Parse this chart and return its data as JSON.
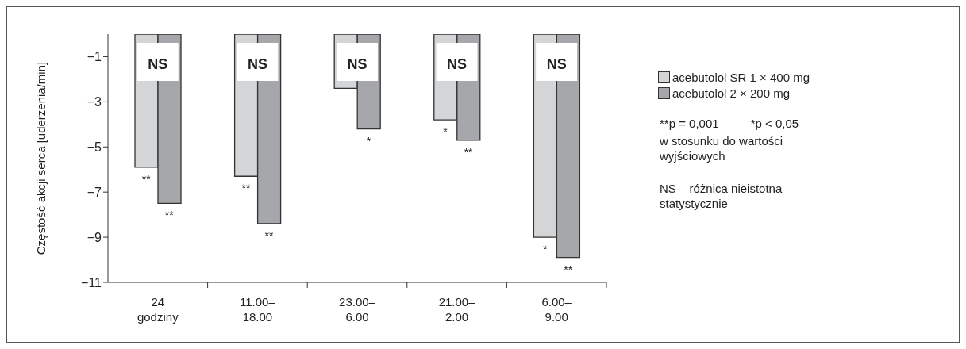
{
  "chart_data": {
    "type": "bar",
    "ylabel": "Częstość akcji serca [uderzenia/min]",
    "categories": [
      "24\ngodziny",
      "11.00–\n18.00",
      "23.00–\n6.00",
      "21.00–\n2.00",
      "6.00–\n9.00"
    ],
    "series": [
      {
        "name": "acebutolol SR 1 × 400 mg",
        "color": "#d4d5d7",
        "values": [
          -5.9,
          -6.3,
          -2.4,
          -3.8,
          -9.0
        ]
      },
      {
        "name": "acebutolol 2 × 200 mg",
        "color": "#a6a7aa",
        "values": [
          -7.5,
          -8.4,
          -4.2,
          -4.7,
          -9.9
        ]
      }
    ],
    "ylim": [
      -11,
      0
    ],
    "yticks": [
      {
        "value": -11,
        "label": "−11"
      },
      {
        "value": -9,
        "label": "−9"
      },
      {
        "value": -7,
        "label": "−7"
      },
      {
        "value": -5,
        "label": "−5"
      },
      {
        "value": -3,
        "label": "−3"
      },
      {
        "value": -1,
        "label": "−1"
      }
    ],
    "legend": "right",
    "grid": false,
    "annotations": [
      {
        "text": "NS",
        "x": "24\ngodziny",
        "y": -1.3
      },
      {
        "text": "NS",
        "x": "11.00–\n18.00",
        "y": -1.3
      },
      {
        "text": "NS",
        "x": "23.00–\n6.00",
        "y": -1.3
      },
      {
        "text": "NS",
        "x": "21.00–\n2.00",
        "y": -1.3
      },
      {
        "text": "NS",
        "x": "6.00–\n9.00",
        "y": -1.3
      },
      {
        "text": "**",
        "x": "24\ngodziny",
        "y": -5.9
      },
      {
        "text": "**",
        "x": "24\ngodziny",
        "y": -7.5
      },
      {
        "text": "**",
        "x": "11.00–\n18.00",
        "y": -6.3
      },
      {
        "text": "**",
        "x": "11.00–\n18.00",
        "y": -8.4
      },
      {
        "text": "*",
        "x": "23.00–\n6.00",
        "y": -4.2
      },
      {
        "text": "*",
        "x": "21.00–\n2.00",
        "y": -3.8
      },
      {
        "text": "**",
        "x": "21.00–\n2.00",
        "y": -4.7
      },
      {
        "text": "*",
        "x": "6.00–\n9.00",
        "y": -9.0
      },
      {
        "text": "**",
        "x": "6.00–\n9.00",
        "y": -9.9
      },
      "**p = 0,001",
      "*p < 0,05",
      "w stosunku do wartości wyjściowych",
      "NS – różnica nieistotna statystycznie"
    ]
  }
}
